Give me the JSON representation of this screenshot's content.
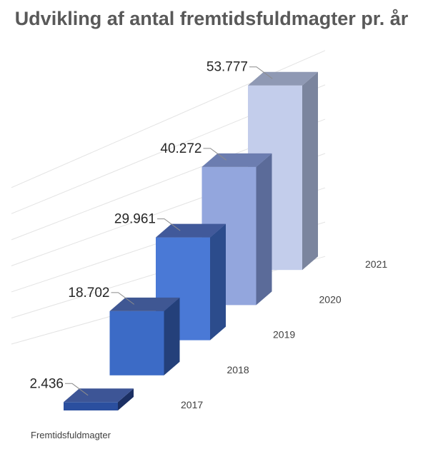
{
  "chart_data": {
    "type": "bar",
    "title": "Udvikling af antal fremtidsfuldmagter pr. år",
    "categories": [
      "2017",
      "2018",
      "2019",
      "2020",
      "2021"
    ],
    "series": [
      {
        "name": "Fremtidsfuldmagter",
        "values": [
          2436,
          18702,
          29961,
          40272,
          53777
        ],
        "labels": [
          "2.436",
          "18.702",
          "29.961",
          "40.272",
          "53.777"
        ]
      }
    ],
    "xlabel": "",
    "ylabel": "",
    "ylim": [
      0,
      60000
    ],
    "grid": true,
    "legend": "none",
    "colors": {
      "front": [
        "#2b4f9f",
        "#3c6bc6",
        "#4a79d6",
        "#93a6dd",
        "#c3cdeb"
      ],
      "side": [
        "#1b2f63",
        "#24407a",
        "#2c4c8c",
        "#5b6b99",
        "#7b859e"
      ],
      "top": [
        "#3d5596",
        "#3f5793",
        "#41599a",
        "#6c7db0",
        "#8f99b4"
      ]
    }
  }
}
